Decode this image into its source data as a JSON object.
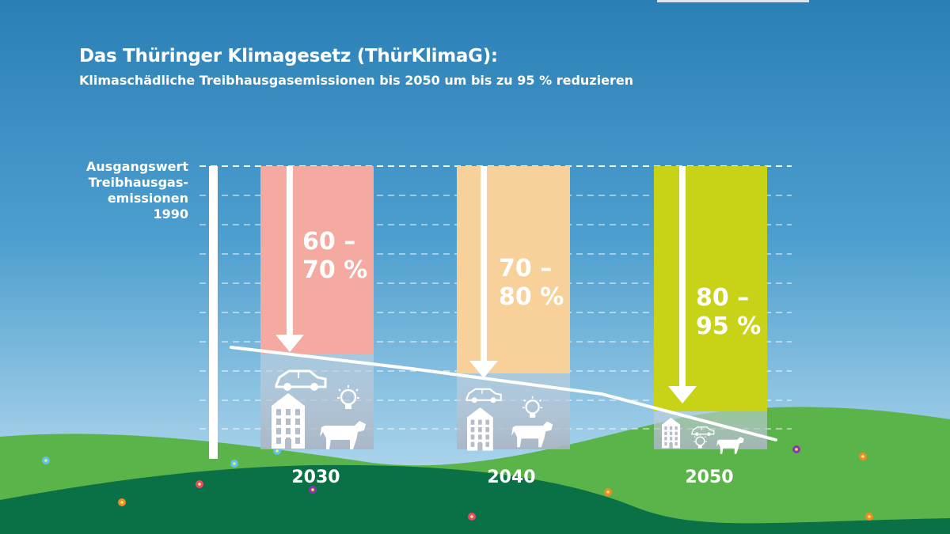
{
  "title": "Das Thüringer Klimagesetz (ThürKlimaG):",
  "subtitle": "Klimaschädliche Treibhausgasemissionen bis 2050 um bis zu 95 % reduzieren",
  "baseline_label": [
    "Ausgangswert",
    "Treibhausgas-",
    "emissionen",
    "1990"
  ],
  "colors": {
    "sky_top": "#2a7fb5",
    "sky_bottom": "#c6e3f3",
    "grass_light": "#5ab44a",
    "grass_dark": "#086f46",
    "bar_2030": "#f4aaa0",
    "bar_2040": "#f7d09a",
    "bar_2050": "#c8d317"
  },
  "chart_data": {
    "type": "bar",
    "title": "Das Thüringer Klimagesetz (ThürKlimaG):",
    "subtitle": "Klimaschädliche Treibhausgasemissionen bis 2050 um bis zu 95 % reduzieren",
    "baseline": "Ausgangswert Treibhausgasemissionen 1990",
    "categories": [
      "2030",
      "2040",
      "2050"
    ],
    "reduction_min": [
      60,
      70,
      80
    ],
    "reduction_max": [
      70,
      80,
      95
    ],
    "labels": [
      [
        "60 –",
        "70 %"
      ],
      [
        "70 –",
        "80 %"
      ],
      [
        "80 –",
        "95 %"
      ]
    ],
    "trend": "declining line from 1990 baseline to 2050",
    "gridlines": "dashed",
    "icons": [
      "car-icon",
      "building-icon",
      "lightbulb-icon",
      "cow-icon"
    ]
  }
}
